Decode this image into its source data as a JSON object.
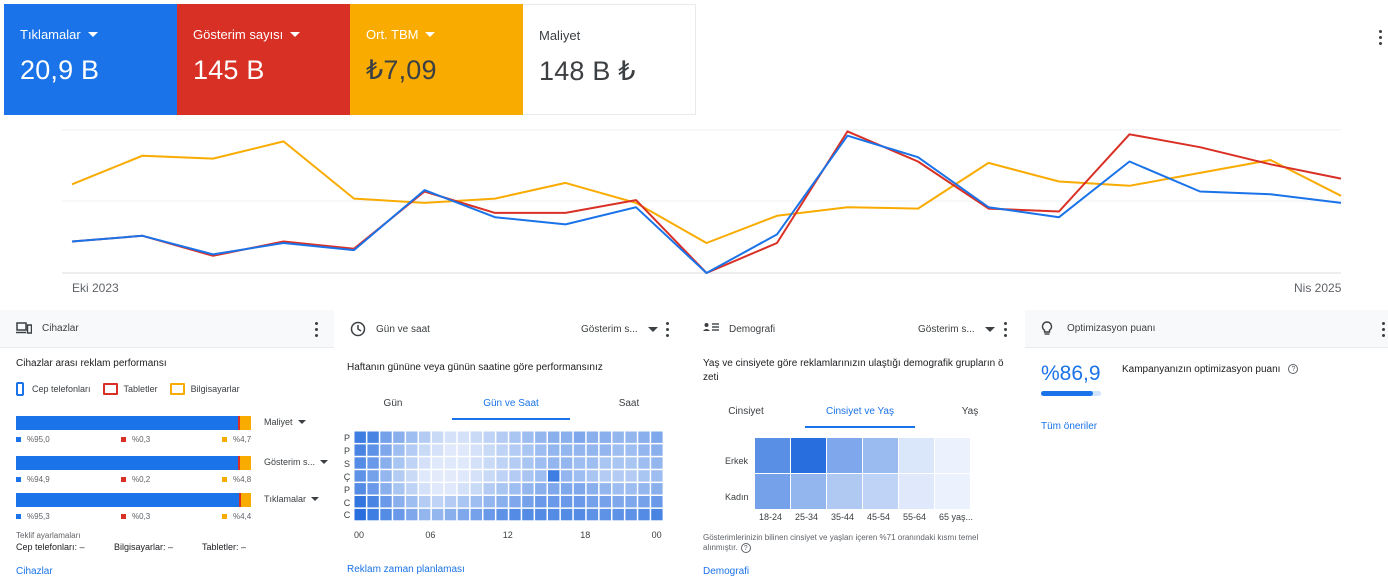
{
  "metrics": [
    {
      "label": "Tıklamalar",
      "value": "20,9 B",
      "color": "#1a73e8",
      "has_dropdown": true
    },
    {
      "label": "Gösterim sayısı",
      "value": "145 B",
      "color": "#d93025",
      "has_dropdown": true
    },
    {
      "label": "Ort. TBM",
      "value": "₺7,09",
      "color": "#f9ab00",
      "has_dropdown": true
    },
    {
      "label": "Maliyet",
      "value": "148 B ₺",
      "color": "#ffffff",
      "has_dropdown": false
    }
  ],
  "chart_data": {
    "type": "line",
    "x_start_label": "Eki 2023",
    "x_end_label": "Nis 2025",
    "grid": true,
    "series": [
      {
        "metric": "Tıklamalar",
        "color": "#1a73e8",
        "values": [
          0.22,
          0.26,
          0.13,
          0.21,
          0.16,
          0.58,
          0.39,
          0.34,
          0.46,
          0.0,
          0.27,
          0.96,
          0.81,
          0.46,
          0.39,
          0.78,
          0.57,
          0.55,
          0.49
        ]
      },
      {
        "metric": "Gösterim sayısı",
        "color": "#d93025",
        "values": [
          0.22,
          0.26,
          0.12,
          0.22,
          0.17,
          0.57,
          0.42,
          0.42,
          0.51,
          0.0,
          0.21,
          0.99,
          0.78,
          0.45,
          0.43,
          0.97,
          0.88,
          0.76,
          0.66
        ]
      },
      {
        "metric": "Ort. TBM",
        "color": "#f9ab00",
        "values": [
          0.62,
          0.82,
          0.8,
          0.92,
          0.52,
          0.49,
          0.52,
          0.63,
          0.49,
          0.21,
          0.4,
          0.46,
          0.45,
          0.77,
          0.64,
          0.61,
          0.7,
          0.79,
          0.54
        ]
      }
    ]
  },
  "devices": {
    "header": "Cihazlar",
    "title": "Cihazlar arası reklam performansı",
    "legend": [
      {
        "label": "Cep telefonları",
        "color": "#1a73e8"
      },
      {
        "label": "Tabletler",
        "color": "#d93025"
      },
      {
        "label": "Bilgisayarlar",
        "color": "#f9ab00"
      }
    ],
    "bars": [
      {
        "metric": "Maliyet",
        "phone": 95.0,
        "tablet": 0.3,
        "desktop": 4.7,
        "phone_label": "%95,0",
        "tablet_label": "%0,3",
        "desktop_label": "%4,7"
      },
      {
        "metric": "Gösterim s...",
        "phone": 94.9,
        "tablet": 0.2,
        "desktop": 4.8,
        "phone_label": "%94,9",
        "tablet_label": "%0,2",
        "desktop_label": "%4,8"
      },
      {
        "metric": "Tıklamalar",
        "phone": 95.3,
        "tablet": 0.3,
        "desktop": 4.4,
        "phone_label": "%95,3",
        "tablet_label": "%0,3",
        "desktop_label": "%4,4"
      }
    ],
    "bid_title": "Teklif ayarlamaları",
    "bid_items": [
      "Cep telefonları: –",
      "Bilgisayarlar: –",
      "Tabletler: –"
    ],
    "link": "Cihazlar"
  },
  "daytime": {
    "header": "Gün ve saat",
    "dropdown": "Gösterim s...",
    "title": "Haftanın gününe veya günün saatine göre performansınız",
    "tabs": [
      "Gün",
      "Gün ve Saat",
      "Saat"
    ],
    "active_tab": 1,
    "day_labels": [
      "P",
      "P",
      "S",
      "Ç",
      "P",
      "C",
      "C"
    ],
    "hour_ticks": [
      "00",
      "06",
      "12",
      "18",
      "00"
    ],
    "heatmap": [
      [
        0.85,
        0.8,
        0.6,
        0.5,
        0.4,
        0.3,
        0.2,
        0.15,
        0.15,
        0.2,
        0.25,
        0.3,
        0.35,
        0.4,
        0.45,
        0.5,
        0.5,
        0.55,
        0.5,
        0.5,
        0.45,
        0.45,
        0.5,
        0.55
      ],
      [
        0.8,
        0.7,
        0.55,
        0.4,
        0.3,
        0.2,
        0.15,
        0.1,
        0.1,
        0.15,
        0.2,
        0.25,
        0.3,
        0.35,
        0.4,
        0.45,
        0.45,
        0.45,
        0.45,
        0.45,
        0.4,
        0.4,
        0.45,
        0.5
      ],
      [
        0.75,
        0.65,
        0.5,
        0.35,
        0.25,
        0.15,
        0.1,
        0.1,
        0.1,
        0.15,
        0.2,
        0.25,
        0.3,
        0.35,
        0.4,
        0.45,
        0.45,
        0.4,
        0.4,
        0.35,
        0.35,
        0.35,
        0.4,
        0.45
      ],
      [
        0.7,
        0.6,
        0.45,
        0.3,
        0.2,
        0.1,
        0.08,
        0.08,
        0.1,
        0.15,
        0.2,
        0.25,
        0.3,
        0.35,
        0.4,
        0.85,
        0.45,
        0.4,
        0.35,
        0.3,
        0.3,
        0.3,
        0.35,
        0.4
      ],
      [
        0.75,
        0.65,
        0.5,
        0.35,
        0.25,
        0.15,
        0.1,
        0.1,
        0.15,
        0.2,
        0.3,
        0.35,
        0.4,
        0.45,
        0.5,
        0.55,
        0.55,
        0.55,
        0.5,
        0.45,
        0.4,
        0.4,
        0.45,
        0.5
      ],
      [
        0.9,
        0.8,
        0.65,
        0.5,
        0.4,
        0.3,
        0.25,
        0.3,
        0.35,
        0.4,
        0.45,
        0.5,
        0.55,
        0.6,
        0.65,
        0.65,
        0.65,
        0.65,
        0.6,
        0.6,
        0.55,
        0.55,
        0.6,
        0.65
      ],
      [
        0.95,
        0.85,
        0.75,
        0.65,
        0.55,
        0.45,
        0.45,
        0.5,
        0.55,
        0.6,
        0.65,
        0.7,
        0.75,
        0.75,
        0.75,
        0.75,
        0.75,
        0.75,
        0.7,
        0.7,
        0.7,
        0.7,
        0.75,
        0.8
      ]
    ],
    "link": "Reklam zaman planlaması"
  },
  "demographics": {
    "header": "Demografi",
    "dropdown": "Gösterim s...",
    "title_line1": "Yaş ve cinsiyete göre reklamlarınızın ulaştığı demografik grupların ö",
    "title_line2": "zeti",
    "tabs": [
      "Cinsiyet",
      "Cinsiyet ve Yaş",
      "Yaş"
    ],
    "active_tab": 1,
    "row_labels": [
      "Erkek",
      "Kadın"
    ],
    "col_labels": [
      "18-24",
      "25-34",
      "35-44",
      "45-54",
      "55-64",
      "65 yaş..."
    ],
    "heatmap": [
      [
        0.72,
        0.95,
        0.55,
        0.42,
        0.12,
        0.04
      ],
      [
        0.6,
        0.45,
        0.32,
        0.25,
        0.1,
        0.04
      ]
    ],
    "note_line1": "Gösterimlerinizin bilinen cinsiyet ve yaşları içeren %71 oranındaki kısmı temel",
    "note_line2": "alınmıştır.",
    "link": "Demografi"
  },
  "optimization": {
    "header": "Optimizasyon puanı",
    "score": "%86,9",
    "score_value": 86.9,
    "title": "Kampanyanızın optimizasyon puanı",
    "link": "Tüm öneriler"
  }
}
